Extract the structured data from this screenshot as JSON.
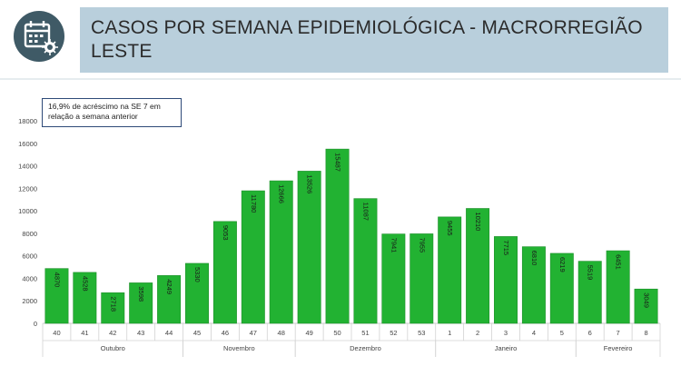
{
  "header": {
    "title": "CASOS POR SEMANA EPIDEMIOLÓGICA - MACRORREGIÃO LESTE",
    "icon": "calendar-virus-icon"
  },
  "annotation": {
    "text": "16,9% de acréscimo na SE 7 em relação a semana anterior"
  },
  "colors": {
    "bar": "#22b232",
    "bar_edge": "#1e8f2a",
    "title_bg": "#b9cfdc",
    "icon_bg": "#3f5a66",
    "annotation_border": "#2e4a78"
  },
  "chart_data": {
    "type": "bar",
    "title": "",
    "xlabel": "",
    "ylabel": "",
    "ylim": [
      0,
      18000
    ],
    "yticks": [
      0,
      2000,
      4000,
      6000,
      8000,
      10000,
      12000,
      14000,
      16000,
      18000
    ],
    "categories": [
      "40",
      "41",
      "42",
      "43",
      "44",
      "45",
      "46",
      "47",
      "48",
      "49",
      "50",
      "51",
      "52",
      "53",
      "1",
      "2",
      "3",
      "4",
      "5",
      "6",
      "7",
      "8"
    ],
    "values": [
      4870,
      4528,
      2718,
      3598,
      4249,
      5330,
      9053,
      11780,
      12666,
      13526,
      15487,
      11087,
      7941,
      7955,
      9455,
      10210,
      7715,
      6810,
      6219,
      5519,
      6451,
      3049
    ],
    "months": [
      {
        "label": "Outubro",
        "start": 0,
        "end": 4
      },
      {
        "label": "Novembro",
        "start": 5,
        "end": 8
      },
      {
        "label": "Dezembro",
        "start": 9,
        "end": 13
      },
      {
        "label": "Janeiro",
        "start": 14,
        "end": 18
      },
      {
        "label": "Fevereiro",
        "start": 19,
        "end": 21
      }
    ],
    "grid": false,
    "legend": "none"
  }
}
